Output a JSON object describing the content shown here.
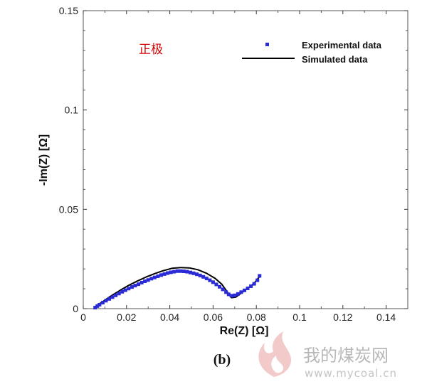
{
  "chart_data": {
    "type": "scatter",
    "xlabel": "Re(Z) [Ω]",
    "ylabel": "-Im(Z) [Ω]",
    "xlim": [
      0,
      0.15
    ],
    "ylim": [
      0,
      0.15
    ],
    "x_ticks": [
      0,
      0.02,
      0.04,
      0.06,
      0.08,
      0.1,
      0.12,
      0.14
    ],
    "x_tick_labels": [
      "0",
      "0.02",
      "0.04",
      "0.06",
      "0.08",
      "0.1",
      "0.12",
      "0.14"
    ],
    "y_ticks": [
      0,
      0.05,
      0.1,
      0.15
    ],
    "y_tick_labels": [
      "0",
      "0.05",
      "0.1",
      "0.15"
    ],
    "grid": false,
    "legend_position": "top-right",
    "annotation": "正极",
    "panel_label": "(b)",
    "series": [
      {
        "name": "Experimental data",
        "style": "markers",
        "color": "#2a2ad6",
        "x": [
          0.0055,
          0.0065,
          0.0075,
          0.009,
          0.0105,
          0.012,
          0.0135,
          0.015,
          0.0165,
          0.018,
          0.0195,
          0.021,
          0.0225,
          0.024,
          0.0255,
          0.027,
          0.0285,
          0.03,
          0.0315,
          0.033,
          0.0345,
          0.036,
          0.0375,
          0.039,
          0.0405,
          0.042,
          0.0435,
          0.045,
          0.0465,
          0.048,
          0.0495,
          0.051,
          0.0525,
          0.054,
          0.0555,
          0.057,
          0.0585,
          0.06,
          0.0615,
          0.063,
          0.0645,
          0.066,
          0.0672,
          0.0685,
          0.07,
          0.0715,
          0.073,
          0.0745,
          0.076,
          0.0775,
          0.079,
          0.0805,
          0.0815
        ],
        "y": [
          0.0005,
          0.0013,
          0.002,
          0.003,
          0.004,
          0.0049,
          0.0058,
          0.0067,
          0.0076,
          0.0085,
          0.0093,
          0.0101,
          0.0109,
          0.0116,
          0.0123,
          0.0131,
          0.0138,
          0.0144,
          0.0151,
          0.0157,
          0.0163,
          0.0169,
          0.0174,
          0.0179,
          0.0183,
          0.0186,
          0.0189,
          0.0189,
          0.0188,
          0.0186,
          0.0182,
          0.0178,
          0.0173,
          0.0167,
          0.016,
          0.0152,
          0.0143,
          0.0133,
          0.0122,
          0.011,
          0.0097,
          0.0083,
          0.0072,
          0.0065,
          0.0067,
          0.0074,
          0.0083,
          0.0092,
          0.0102,
          0.0113,
          0.0125,
          0.0143,
          0.0165
        ]
      },
      {
        "name": "Simulated data",
        "style": "line",
        "color": "#000000",
        "x": [
          0.0055,
          0.009,
          0.013,
          0.017,
          0.021,
          0.025,
          0.029,
          0.033,
          0.037,
          0.041,
          0.045,
          0.049,
          0.053,
          0.057,
          0.061,
          0.064,
          0.0665,
          0.0685,
          0.0705,
          0.073,
          0.076,
          0.079,
          0.0815
        ],
        "y": [
          0.001,
          0.0035,
          0.0065,
          0.0092,
          0.0117,
          0.0139,
          0.0159,
          0.0176,
          0.0191,
          0.0203,
          0.0207,
          0.0205,
          0.0196,
          0.0178,
          0.0152,
          0.0123,
          0.0085,
          0.0055,
          0.0058,
          0.0078,
          0.0102,
          0.0128,
          0.0162
        ]
      }
    ]
  },
  "watermark": {
    "text": "我的煤炭网",
    "url": "www.mycoal.cn"
  }
}
